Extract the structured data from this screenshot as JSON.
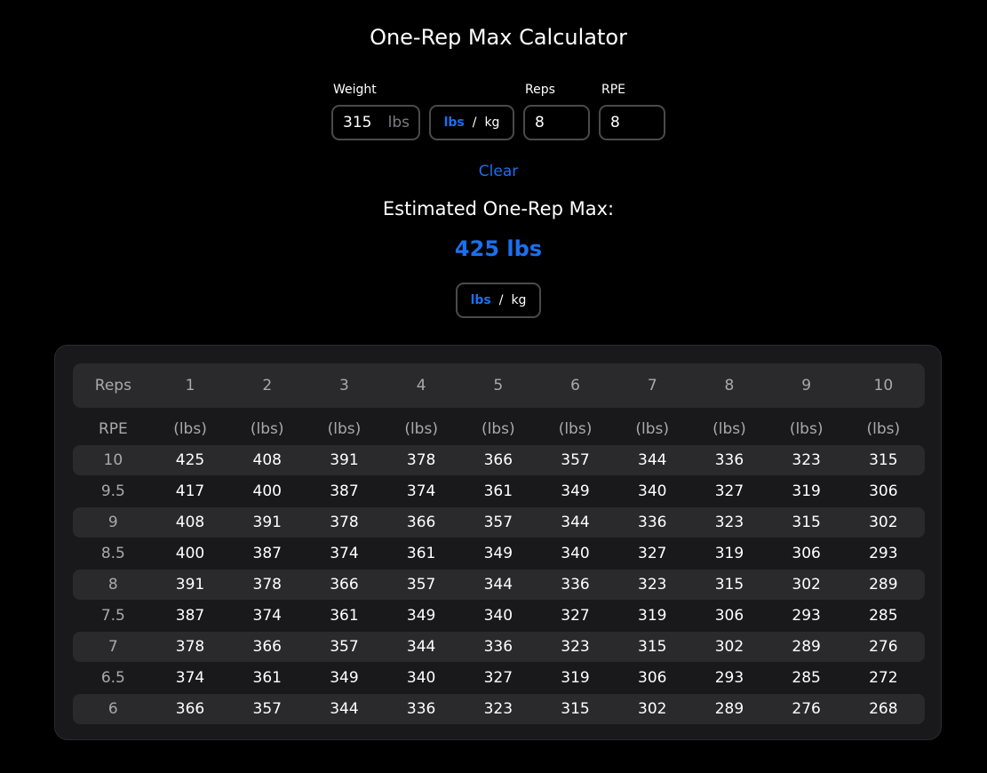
{
  "title": "One-Rep Max Calculator",
  "form": {
    "weight_label": "Weight",
    "weight_value": "315",
    "weight_unit": "lbs",
    "reps_label": "Reps",
    "reps_value": "8",
    "rpe_label": "RPE",
    "rpe_value": "8"
  },
  "unit_toggle": {
    "lbs": "lbs",
    "separator": "/",
    "kg": "kg",
    "active": "lbs"
  },
  "clear_label": "Clear",
  "result": {
    "label": "Estimated One-Rep Max:",
    "value": "425 lbs"
  },
  "table": {
    "corner_header": "Reps",
    "rep_headers": [
      "1",
      "2",
      "3",
      "4",
      "5",
      "6",
      "7",
      "8",
      "9",
      "10"
    ],
    "rpe_header": "RPE",
    "unit_label": "(lbs)",
    "rows": [
      {
        "rpe": "10",
        "values": [
          "425",
          "408",
          "391",
          "378",
          "366",
          "357",
          "344",
          "336",
          "323",
          "315"
        ]
      },
      {
        "rpe": "9.5",
        "values": [
          "417",
          "400",
          "387",
          "374",
          "361",
          "349",
          "340",
          "327",
          "319",
          "306"
        ]
      },
      {
        "rpe": "9",
        "values": [
          "408",
          "391",
          "378",
          "366",
          "357",
          "344",
          "336",
          "323",
          "315",
          "302"
        ]
      },
      {
        "rpe": "8.5",
        "values": [
          "400",
          "387",
          "374",
          "361",
          "349",
          "340",
          "327",
          "319",
          "306",
          "293"
        ]
      },
      {
        "rpe": "8",
        "values": [
          "391",
          "378",
          "366",
          "357",
          "344",
          "336",
          "323",
          "315",
          "302",
          "289"
        ]
      },
      {
        "rpe": "7.5",
        "values": [
          "387",
          "374",
          "361",
          "349",
          "340",
          "327",
          "319",
          "306",
          "293",
          "285"
        ]
      },
      {
        "rpe": "7",
        "values": [
          "378",
          "366",
          "357",
          "344",
          "336",
          "323",
          "315",
          "302",
          "289",
          "276"
        ]
      },
      {
        "rpe": "6.5",
        "values": [
          "374",
          "361",
          "349",
          "340",
          "327",
          "319",
          "306",
          "293",
          "285",
          "272"
        ]
      },
      {
        "rpe": "6",
        "values": [
          "366",
          "357",
          "344",
          "336",
          "323",
          "315",
          "302",
          "289",
          "276",
          "268"
        ]
      }
    ]
  },
  "colors": {
    "accent": "#1c6ff0",
    "background": "#000000",
    "card": "#19191b",
    "row_shade": "#2a2a2d"
  }
}
